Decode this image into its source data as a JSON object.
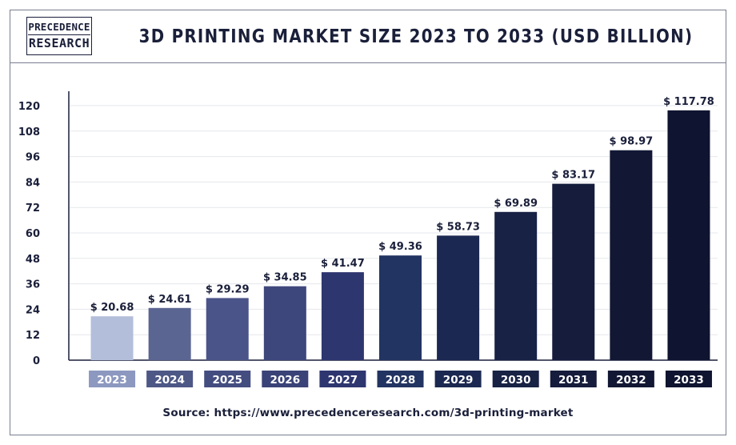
{
  "header": {
    "logo_line1": "PRECEDENCE",
    "logo_line2": "RESEARCH",
    "title": "3D PRINTING MARKET SIZE 2023 TO 2033 (USD BILLION)"
  },
  "source": "Source: https://www.precedenceresearch.com/3d-printing-market",
  "chart_data": {
    "type": "bar",
    "title": "3D PRINTING MARKET SIZE 2023 TO 2033 (USD BILLION)",
    "categories": [
      "2023",
      "2024",
      "2025",
      "2026",
      "2027",
      "2028",
      "2029",
      "2030",
      "2031",
      "2032",
      "2033"
    ],
    "values": [
      20.68,
      24.61,
      29.29,
      34.85,
      41.47,
      49.36,
      58.73,
      69.89,
      83.17,
      98.97,
      117.78
    ],
    "value_labels": [
      "$ 20.68",
      "$ 24.61",
      "$ 29.29",
      "$ 34.85",
      "$ 41.47",
      "$ 49.36",
      "$ 58.73",
      "$ 69.89",
      "$ 83.17",
      "$ 98.97",
      "$ 117.78"
    ],
    "ylim": [
      0,
      120
    ],
    "yticks": [
      0,
      12,
      24,
      36,
      48,
      60,
      72,
      84,
      96,
      108,
      120
    ],
    "xlabel": "",
    "ylabel": "",
    "grid": true,
    "bar_colors": [
      "#b3bedb",
      "#5a6592",
      "#4b5488",
      "#3e477c",
      "#2e3670",
      "#223461",
      "#1b2851",
      "#182245",
      "#151c3c",
      "#121834",
      "#0f1430"
    ],
    "label_colors": [
      "#8c98bf",
      "#4e5886",
      "#444d80",
      "#3a4377",
      "#2e3670",
      "#223461",
      "#1b2851",
      "#182245",
      "#151c3c",
      "#121834",
      "#0f1430"
    ]
  }
}
